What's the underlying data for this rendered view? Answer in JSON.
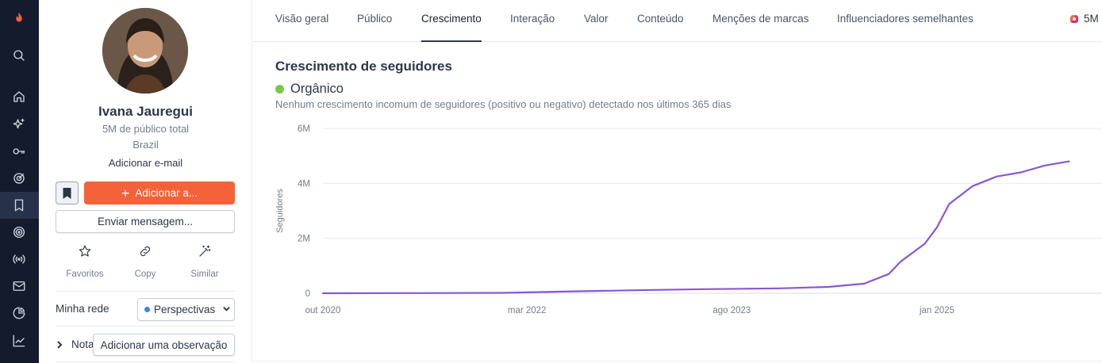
{
  "nav_rail": {
    "icons": [
      "flame-logo-icon",
      "search-icon",
      "home-icon",
      "sparkles-icon",
      "key-icon",
      "target-icon",
      "bookmark-icon",
      "bullseye-icon",
      "broadcast-icon",
      "mail-icon",
      "pie-chart-icon",
      "trend-icon"
    ],
    "active": "bookmark-icon"
  },
  "profile": {
    "name": "Ivana Jauregui",
    "audience": "5M de público total",
    "country": "Brazil",
    "add_email": "Adicionar e-mail",
    "add_button": "Adicionar a...",
    "message_button": "Enviar mensagem...",
    "actions": [
      {
        "label": "Favoritos",
        "icon": "star-icon"
      },
      {
        "label": "Copy",
        "icon": "link-icon"
      },
      {
        "label": "Similar",
        "icon": "magic-wand-icon"
      }
    ],
    "network_label": "Minha rede",
    "network_value": "Perspectivas",
    "notes_label": "Nota",
    "note_button": "Adicionar uma observação"
  },
  "tabs": [
    {
      "label": "Visão geral"
    },
    {
      "label": "Público"
    },
    {
      "label": "Crescimento",
      "active": true
    },
    {
      "label": "Interação"
    },
    {
      "label": "Valor"
    },
    {
      "label": "Conteúdo"
    },
    {
      "label": "Menções de marcas"
    },
    {
      "label": "Influenciadores semelhantes"
    }
  ],
  "platform": {
    "label": "5M",
    "icon": "instagram-icon"
  },
  "growth": {
    "title": "Crescimento de seguidores",
    "status": "Orgânico",
    "status_color": "#7ac943",
    "description": "Nenhum crescimento incomum de seguidores (positivo ou negativo) detectado nos últimos 365 dias"
  },
  "chart_data": {
    "type": "line",
    "title": "",
    "xlabel": "",
    "ylabel": "Seguidores",
    "y_ticks": [
      "6M",
      "4M",
      "2M",
      "0"
    ],
    "y_tick_values": [
      6000000,
      4000000,
      2000000,
      0
    ],
    "ylim": [
      0,
      6000000
    ],
    "x_ticks": [
      {
        "label": "out 2020",
        "date": "2020-10-01"
      },
      {
        "label": "mar 2022",
        "date": "2022-03-01"
      },
      {
        "label": "ago 2023",
        "date": "2023-08-01"
      },
      {
        "label": "jan 2025",
        "date": "2025-01-01"
      }
    ],
    "grid": true,
    "line_color": "#8a56d6",
    "series": [
      {
        "points": [
          [
            "2020-10-01",
            0
          ],
          [
            "2021-06-01",
            5000
          ],
          [
            "2022-01-01",
            15000
          ],
          [
            "2022-06-01",
            60000
          ],
          [
            "2022-12-01",
            110000
          ],
          [
            "2023-06-01",
            150000
          ],
          [
            "2023-12-01",
            180000
          ],
          [
            "2024-04-01",
            230000
          ],
          [
            "2024-07-01",
            350000
          ],
          [
            "2024-09-01",
            700000
          ],
          [
            "2024-10-01",
            1150000
          ],
          [
            "2024-12-01",
            1800000
          ],
          [
            "2025-01-01",
            2400000
          ],
          [
            "2025-02-01",
            3250000
          ],
          [
            "2025-04-01",
            3900000
          ],
          [
            "2025-06-01",
            4250000
          ],
          [
            "2025-08-01",
            4400000
          ],
          [
            "2025-10-01",
            4650000
          ],
          [
            "2025-12-01",
            4800000
          ]
        ]
      }
    ]
  }
}
